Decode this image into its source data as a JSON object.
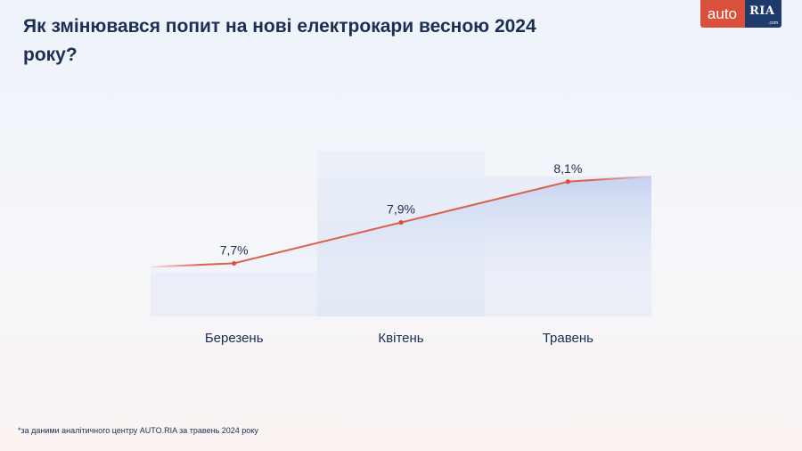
{
  "title": "Як змінювався попит на нові електрокари весною 2024 року?",
  "logo": {
    "auto": "auto",
    "ria": "RIA",
    "com": ".com"
  },
  "chart_data": {
    "type": "line",
    "title": "Як змінювався попит на нові електрокари весною 2024 року?",
    "categories": [
      "Березень",
      "Квітень",
      "Травень"
    ],
    "series": [
      {
        "values": [
          7.7,
          7.9,
          8.1
        ],
        "labels": [
          "7,7%",
          "7,9%",
          "8,1%"
        ]
      }
    ],
    "unit": "%",
    "grid": false,
    "legend": "none",
    "colors": {
      "line": "#d9513c",
      "area": "#b9c9ee",
      "band": "#dbe5f5"
    }
  },
  "footnote": "*за даними аналітичного центру AUTO.RIA за травень 2024 року"
}
